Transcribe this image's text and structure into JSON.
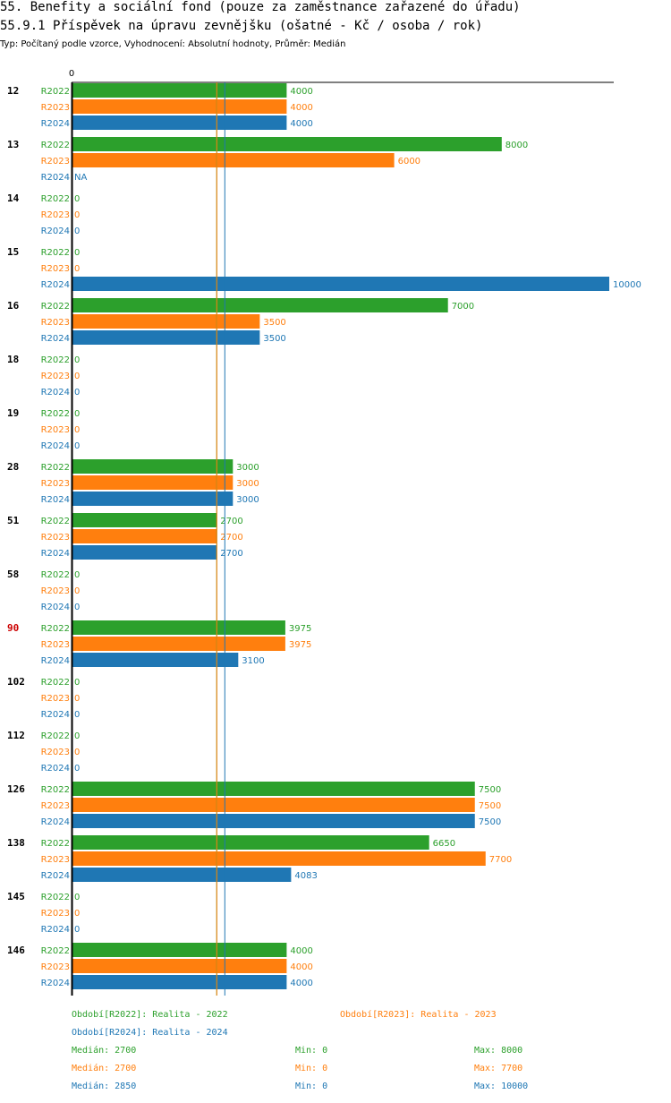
{
  "header": {
    "title": "55. Benefity a sociální fond (pouze za zaměstnance zařazené do úřadu)",
    "subtitle": "55.9.1 Příspěvek na úpravu zevnějšku (ošatné - Kč / osoba / rok)",
    "info": "Typ: Počítaný podle vzorce, Vyhodnocení: Absolutní hodnoty, Průměr: Medián"
  },
  "colors": {
    "R2022": "#2ca02c",
    "R2023": "#ff7f0e",
    "R2024": "#1f77b4",
    "highlight": "#cc0000"
  },
  "chart_data": {
    "type": "bar",
    "orientation": "horizontal",
    "xlim": [
      0,
      10000
    ],
    "axis_zero_label": "0",
    "series_names": [
      "R2022",
      "R2023",
      "R2024"
    ],
    "highlighted_group": "90",
    "groups": [
      {
        "label": "12",
        "values": [
          4000,
          4000,
          4000
        ],
        "labels": [
          "4000",
          "4000",
          "4000"
        ]
      },
      {
        "label": "13",
        "values": [
          8000,
          6000,
          null
        ],
        "labels": [
          "8000",
          "6000",
          "NA"
        ]
      },
      {
        "label": "14",
        "values": [
          0,
          0,
          0
        ],
        "labels": [
          "0",
          "0",
          "0"
        ]
      },
      {
        "label": "15",
        "values": [
          0,
          0,
          10000
        ],
        "labels": [
          "0",
          "0",
          "10000"
        ]
      },
      {
        "label": "16",
        "values": [
          7000,
          3500,
          3500
        ],
        "labels": [
          "7000",
          "3500",
          "3500"
        ]
      },
      {
        "label": "18",
        "values": [
          0,
          0,
          0
        ],
        "labels": [
          "0",
          "0",
          "0"
        ]
      },
      {
        "label": "19",
        "values": [
          0,
          0,
          0
        ],
        "labels": [
          "0",
          "0",
          "0"
        ]
      },
      {
        "label": "28",
        "values": [
          3000,
          3000,
          3000
        ],
        "labels": [
          "3000",
          "3000",
          "3000"
        ]
      },
      {
        "label": "51",
        "values": [
          2700,
          2700,
          2700
        ],
        "labels": [
          "2700",
          "2700",
          "2700"
        ]
      },
      {
        "label": "58",
        "values": [
          0,
          0,
          0
        ],
        "labels": [
          "0",
          "0",
          "0"
        ]
      },
      {
        "label": "90",
        "values": [
          3975,
          3975,
          3100
        ],
        "labels": [
          "3975",
          "3975",
          "3100"
        ]
      },
      {
        "label": "102",
        "values": [
          0,
          0,
          0
        ],
        "labels": [
          "0",
          "0",
          "0"
        ]
      },
      {
        "label": "112",
        "values": [
          0,
          0,
          0
        ],
        "labels": [
          "0",
          "0",
          "0"
        ]
      },
      {
        "label": "126",
        "values": [
          7500,
          7500,
          7500
        ],
        "labels": [
          "7500",
          "7500",
          "7500"
        ]
      },
      {
        "label": "138",
        "values": [
          6650,
          7700,
          4083
        ],
        "labels": [
          "6650",
          "7700",
          "4083"
        ]
      },
      {
        "label": "145",
        "values": [
          0,
          0,
          0
        ],
        "labels": [
          "0",
          "0",
          "0"
        ]
      },
      {
        "label": "146",
        "values": [
          4000,
          4000,
          4000
        ],
        "labels": [
          "4000",
          "4000",
          "4000"
        ]
      }
    ],
    "reference_lines": [
      {
        "series": "R2022",
        "value": 2700
      },
      {
        "series": "R2023",
        "value": 2700
      },
      {
        "series": "R2024",
        "value": 2850
      }
    ]
  },
  "legend": {
    "periods": [
      {
        "series": "R2022",
        "text": "Období[R2022]: Realita - 2022"
      },
      {
        "series": "R2023",
        "text": "Období[R2023]: Realita - 2023"
      },
      {
        "series": "R2024",
        "text": "Období[R2024]: Realita - 2024"
      }
    ],
    "stats": [
      {
        "series": "R2022",
        "median": "Medián: 2700",
        "min": "Min: 0",
        "max": "Max: 8000"
      },
      {
        "series": "R2023",
        "median": "Medián: 2700",
        "min": "Min: 0",
        "max": "Max: 7700"
      },
      {
        "series": "R2024",
        "median": "Medián: 2850",
        "min": "Min: 0",
        "max": "Max: 10000"
      }
    ]
  }
}
